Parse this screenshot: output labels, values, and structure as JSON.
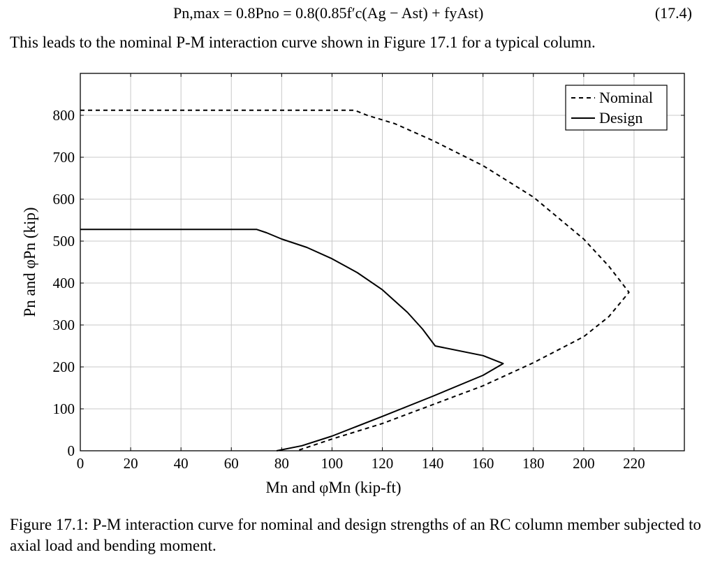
{
  "equation": {
    "formula": "Pn,max = 0.8Pno = 0.8(0.85f′c(Ag − Ast) + fyAst)",
    "number": "(17.4)"
  },
  "intro_text": "This leads to the nominal P-M interaction curve shown in Figure 17.1 for a typical column.",
  "caption": {
    "label": "Figure 17.1:",
    "text": "P-M interaction curve for nominal and design strengths of an RC column member subjected to axial load and bending moment."
  },
  "chart_data": {
    "type": "line",
    "xlabel": "Mn and φMn (kip-ft)",
    "ylabel": "Pn and φPn (kip)",
    "xlim": [
      0,
      240
    ],
    "ylim": [
      0,
      900
    ],
    "xticks": [
      "0",
      "20",
      "40",
      "60",
      "80",
      "100",
      "120",
      "140",
      "160",
      "180",
      "200",
      "220"
    ],
    "yticks": [
      "0",
      "100",
      "200",
      "300",
      "400",
      "500",
      "600",
      "700",
      "800"
    ],
    "grid": true,
    "legend_position": "top-right",
    "series": [
      {
        "name": "Nominal",
        "style": "dashed",
        "color": "#000000",
        "points": [
          [
            0,
            812
          ],
          [
            109,
            812
          ],
          [
            114,
            800
          ],
          [
            125,
            780
          ],
          [
            140,
            740
          ],
          [
            160,
            680
          ],
          [
            180,
            605
          ],
          [
            200,
            505
          ],
          [
            210,
            440
          ],
          [
            218,
            378
          ],
          [
            210,
            320
          ],
          [
            200,
            272
          ],
          [
            180,
            210
          ],
          [
            160,
            155
          ],
          [
            140,
            110
          ],
          [
            120,
            65
          ],
          [
            100,
            28
          ],
          [
            86,
            0
          ]
        ]
      },
      {
        "name": "Design",
        "style": "solid",
        "color": "#000000",
        "points": [
          [
            0,
            528
          ],
          [
            70,
            528
          ],
          [
            74,
            520
          ],
          [
            80,
            505
          ],
          [
            90,
            485
          ],
          [
            100,
            458
          ],
          [
            110,
            425
          ],
          [
            120,
            384
          ],
          [
            130,
            330
          ],
          [
            136,
            290
          ],
          [
            141,
            250
          ],
          [
            160,
            227
          ],
          [
            168,
            208
          ],
          [
            160,
            180
          ],
          [
            140,
            130
          ],
          [
            120,
            82
          ],
          [
            100,
            35
          ],
          [
            88,
            12
          ],
          [
            78,
            0
          ]
        ]
      }
    ]
  }
}
